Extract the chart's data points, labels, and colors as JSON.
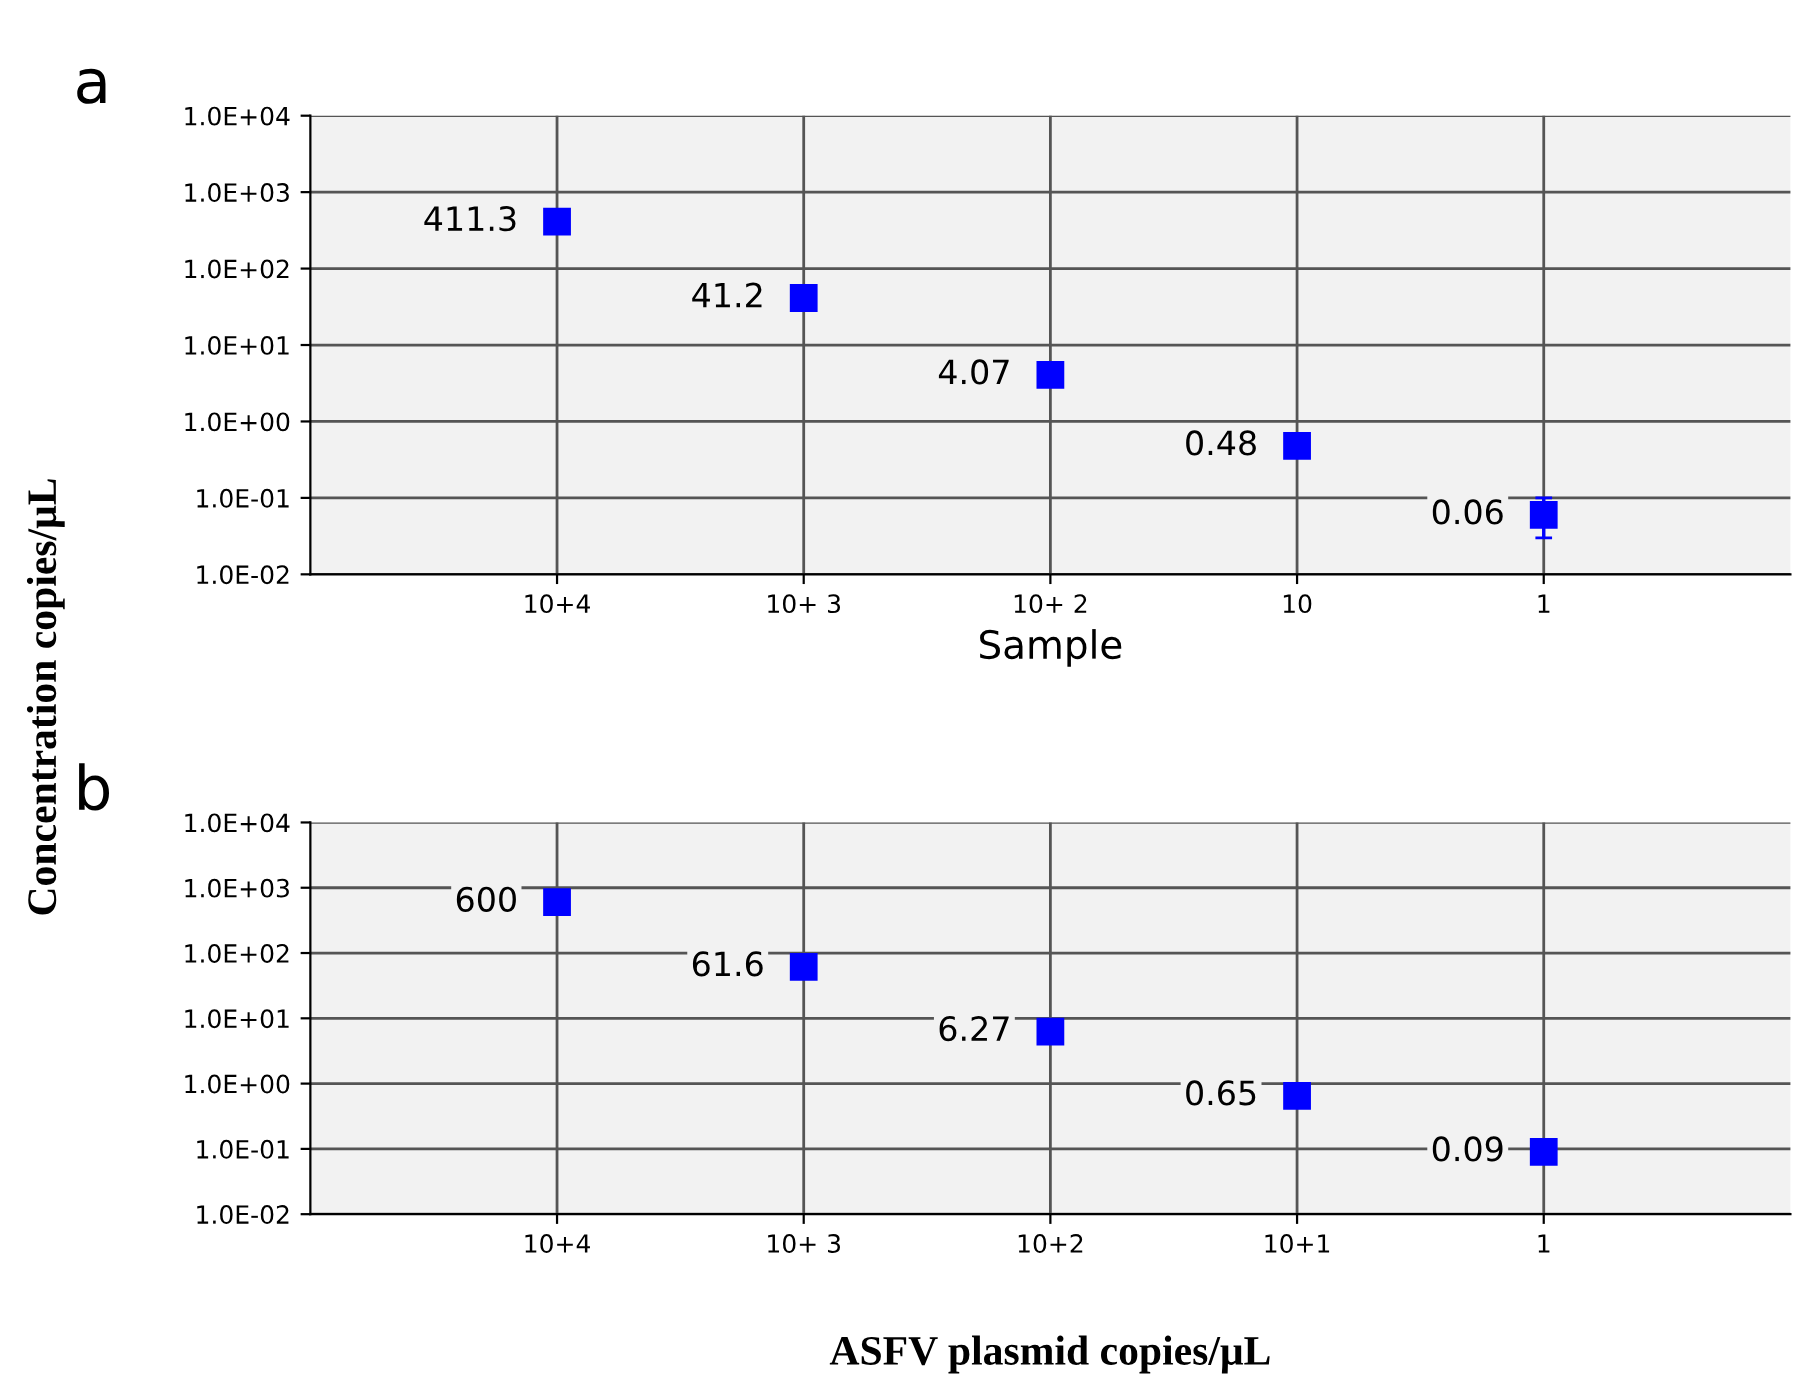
{
  "chart_data": [
    {
      "type": "scatter",
      "title": "a",
      "xlabel": "Sample",
      "ylabel": "Concentration copies/μL",
      "categories": [
        "10+4",
        "10+ 3",
        "10+ 2",
        "10",
        "1"
      ],
      "series": [
        {
          "color": "#0000ff",
          "values": [
            411.3,
            41.2,
            4.07,
            0.48,
            0.06
          ],
          "errors": [
            null,
            null,
            null,
            null,
            [
              0.03,
              0.1
            ]
          ]
        }
      ],
      "log": "y",
      "ylim": [
        0.01,
        10000
      ],
      "yticks": [
        {
          "value": 0.01,
          "label": "1.0E-02"
        },
        {
          "value": 0.1,
          "label": "1.0E-01"
        },
        {
          "value": 1,
          "label": "1.0E+00"
        },
        {
          "value": 10,
          "label": "1.0E+01"
        },
        {
          "value": 100,
          "label": "1.0E+02"
        },
        {
          "value": 1000,
          "label": "1.0E+03"
        },
        {
          "value": 10000,
          "label": "1.0E+04"
        }
      ],
      "grid": true,
      "marker": "square",
      "data_labels": true
    },
    {
      "type": "scatter",
      "title": "b",
      "xlabel": "ASFV plasmid copies/μL",
      "categories": [
        "10+4",
        "10+ 3",
        "10+2",
        "10+1",
        "1"
      ],
      "series": [
        {
          "color": "#0000ff",
          "values": [
            600,
            61.6,
            6.27,
            0.65,
            0.09
          ],
          "errors": [
            null,
            null,
            null,
            null,
            [
              0.06,
              0.09
            ]
          ]
        }
      ],
      "log": "y",
      "ylim": [
        0.01,
        10000
      ],
      "yticks": [
        {
          "value": 0.01,
          "label": "1.0E-02"
        },
        {
          "value": 0.1,
          "label": "1.0E-01"
        },
        {
          "value": 1,
          "label": "1.0E+00"
        },
        {
          "value": 10,
          "label": "1.0E+01"
        },
        {
          "value": 100,
          "label": "1.0E+02"
        },
        {
          "value": 1000,
          "label": "1.0E+03"
        },
        {
          "value": 10000,
          "label": "1.0E+04"
        }
      ],
      "grid": true,
      "marker": "square",
      "data_labels": true
    }
  ]
}
